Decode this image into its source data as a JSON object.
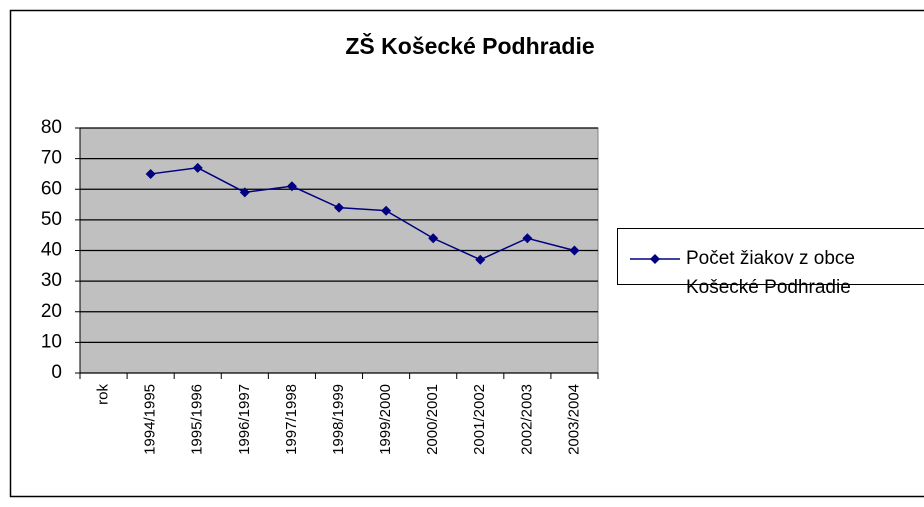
{
  "chart_data": {
    "type": "line",
    "title": "ZŠ Košecké Podhradie",
    "categories": [
      "rok",
      "1994/1995",
      "1995/1996",
      "1996/1997",
      "1997/1998",
      "1998/1999",
      "1999/2000",
      "2000/2001",
      "2001/2002",
      "2002/2003",
      "2003/2004"
    ],
    "series": [
      {
        "name": "Počet žiakov z obce Košecké Podhradie",
        "color": "#000080",
        "values": [
          null,
          65,
          67,
          59,
          61,
          54,
          53,
          44,
          37,
          44,
          40
        ]
      }
    ],
    "ylim": [
      0,
      80
    ],
    "yticks": [
      0,
      10,
      20,
      30,
      40,
      50,
      60,
      70,
      80
    ],
    "grid": true,
    "legend": "right"
  }
}
